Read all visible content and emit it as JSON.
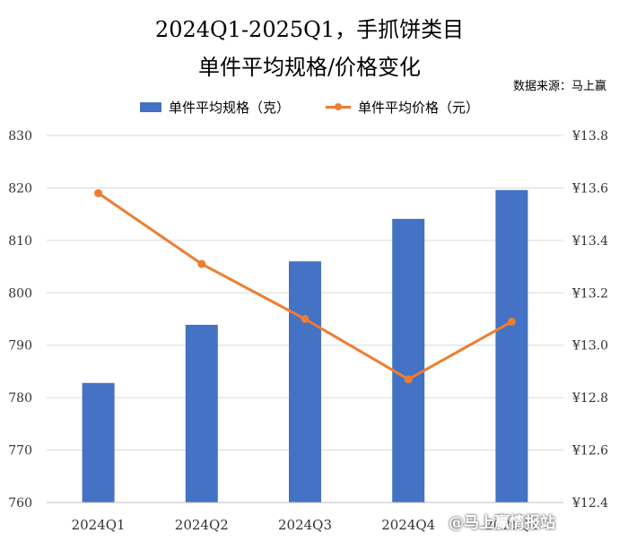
{
  "header": {
    "title_line1": "2024Q1-2025Q1，手抓饼类目",
    "title_line2": "单件平均规格/价格变化",
    "source": "数据来源：马上赢"
  },
  "watermark": "@马上赢情报站",
  "colors": {
    "bar": "#4472c4",
    "line": "#ed7d31",
    "grid": "#d9d9d9"
  },
  "chart_data": {
    "type": "bar",
    "categories": [
      "2024Q1",
      "2024Q2",
      "2024Q3",
      "2024Q4",
      "2025Q1"
    ],
    "series": [
      {
        "name": "单件平均规格（克）",
        "type": "bar",
        "axis": "left",
        "values": [
          782.8,
          793.9,
          806.0,
          814.1,
          819.6
        ]
      },
      {
        "name": "单件平均价格（元）",
        "type": "line",
        "axis": "right",
        "values": [
          13.58,
          13.31,
          13.1,
          12.87,
          13.09
        ]
      }
    ],
    "ylim_left": [
      760,
      830
    ],
    "yticks_left": [
      "760",
      "770",
      "780",
      "790",
      "800",
      "810",
      "820",
      "830"
    ],
    "ylim_right": [
      12.4,
      13.8
    ],
    "yticks_right": [
      "¥12.4",
      "¥12.6",
      "¥12.8",
      "¥13.0",
      "¥13.2",
      "¥13.4",
      "¥13.6",
      "¥13.8"
    ],
    "grid": true,
    "legend_position": "top"
  }
}
